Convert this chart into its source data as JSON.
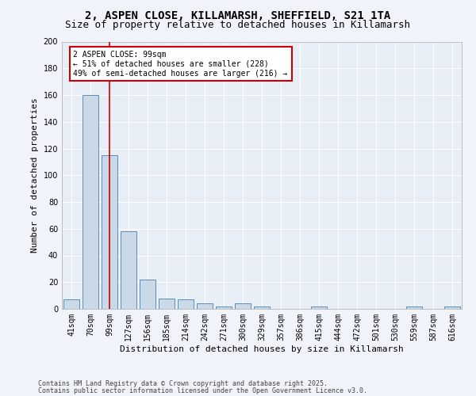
{
  "title_line1": "2, ASPEN CLOSE, KILLAMARSH, SHEFFIELD, S21 1TA",
  "title_line2": "Size of property relative to detached houses in Killamarsh",
  "xlabel": "Distribution of detached houses by size in Killamarsh",
  "ylabel": "Number of detached properties",
  "categories": [
    "41sqm",
    "70sqm",
    "99sqm",
    "127sqm",
    "156sqm",
    "185sqm",
    "214sqm",
    "242sqm",
    "271sqm",
    "300sqm",
    "329sqm",
    "357sqm",
    "386sqm",
    "415sqm",
    "444sqm",
    "472sqm",
    "501sqm",
    "530sqm",
    "559sqm",
    "587sqm",
    "616sqm"
  ],
  "values": [
    7,
    160,
    115,
    58,
    22,
    8,
    7,
    4,
    2,
    4,
    2,
    0,
    0,
    2,
    0,
    0,
    0,
    0,
    2,
    0,
    2
  ],
  "bar_color": "#c9d9e8",
  "bar_edge_color": "#5b8db8",
  "vline_color": "#cc0000",
  "vline_index": 2,
  "annotation_text": "2 ASPEN CLOSE: 99sqm\n← 51% of detached houses are smaller (228)\n49% of semi-detached houses are larger (216) →",
  "annotation_box_color": "#cc0000",
  "ylim": [
    0,
    200
  ],
  "yticks": [
    0,
    20,
    40,
    60,
    80,
    100,
    120,
    140,
    160,
    180,
    200
  ],
  "background_color": "#e8eef6",
  "grid_color": "#ffffff",
  "fig_background": "#f0f4fa",
  "footer_line1": "Contains HM Land Registry data © Crown copyright and database right 2025.",
  "footer_line2": "Contains public sector information licensed under the Open Government Licence v3.0.",
  "title_fontsize": 10,
  "subtitle_fontsize": 9,
  "axis_label_fontsize": 8,
  "tick_fontsize": 7,
  "annotation_fontsize": 7,
  "footer_fontsize": 6
}
